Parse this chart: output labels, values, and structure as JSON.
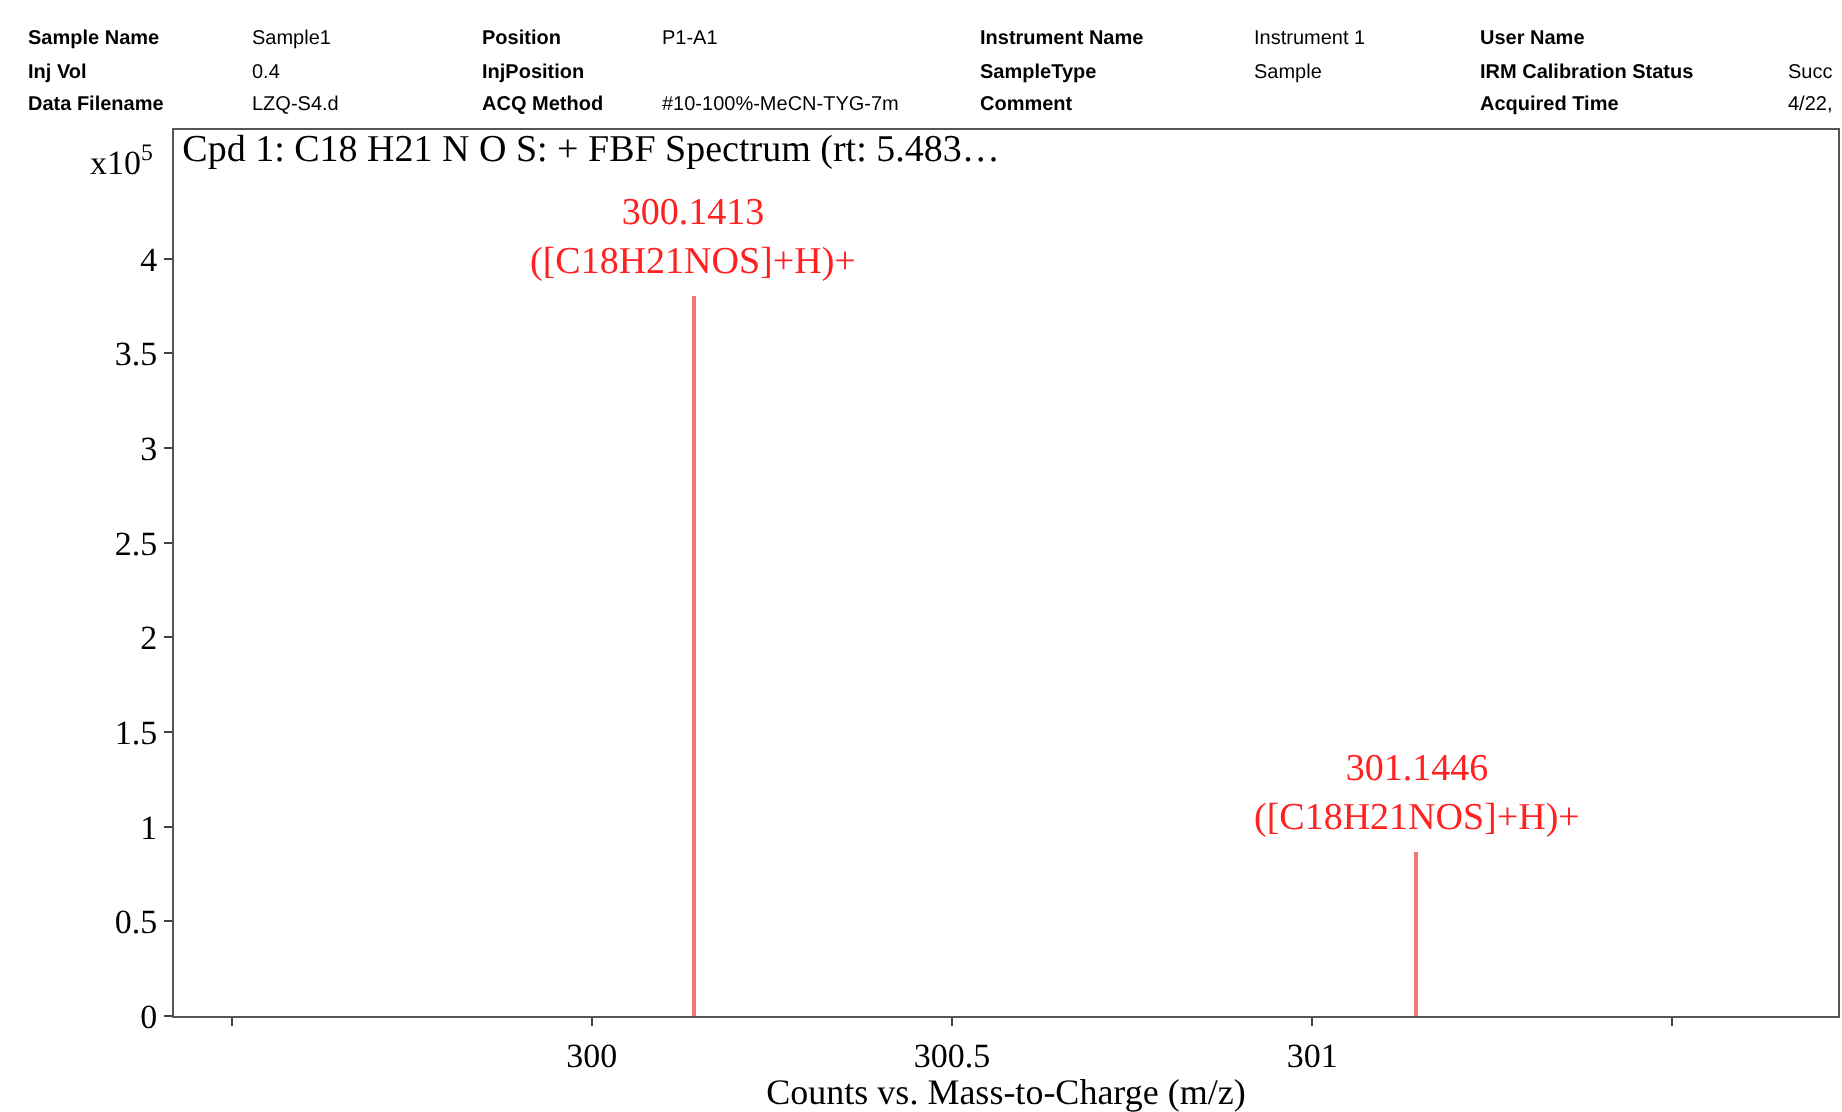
{
  "chart_data": {
    "type": "bar",
    "title": "Cpd 1: C18 H21 N O S: + FBF Spectrum (rt: 5.483…",
    "xlabel": "Counts vs. Mass-to-Charge (m/z)",
    "ylabel": "x10$^{5}$",
    "x": [
      300.1413,
      301.1446
    ],
    "series": [
      {
        "color": "#f07878",
        "values": [
          3.8,
          0.87
        ]
      }
    ],
    "xlim": [
      299.42,
      301.73
    ],
    "xticks": [
      {
        "value": 299.5,
        "label": null
      },
      300,
      300.5,
      301,
      {
        "value": 301.5,
        "label": null
      }
    ],
    "ylim": [
      0,
      4.68
    ],
    "yticks": [
      0,
      0.5,
      1,
      1.5,
      2,
      2.5,
      3,
      3.5,
      4
    ],
    "annotations": [
      "Sample Name",
      "Sample1",
      "Inj Vol",
      "0.4",
      "Data Filename",
      "LZQ-S4.d",
      "Position",
      "P1-A1",
      "InjPosition",
      "ACQ Method",
      "#10-100%-MeCN-TYG-7m",
      "Instrument Name",
      "Instrument 1",
      "SampleType",
      "Sample",
      "Comment",
      "User Name",
      "IRM Calibration Status",
      "Succ",
      "Acquired Time",
      "4/22,",
      {
        "text": "300.1413\n([C18H21NOS]+H)+",
        "x": 300.1413,
        "y": 3.8
      },
      {
        "text": "301.1446\n([C18H21NOS]+H)+",
        "x": 301.1446,
        "y": 0.87
      }
    ]
  }
}
